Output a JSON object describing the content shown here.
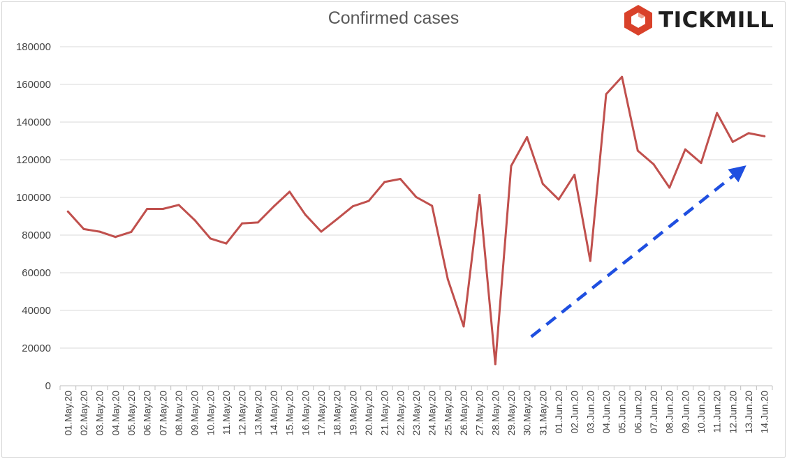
{
  "brand": {
    "name": "TICKMILL",
    "logo_color": "#d9412a"
  },
  "chart_data": {
    "type": "line",
    "title": "Confirmed cases",
    "xlabel": "",
    "ylabel": "",
    "ylim": [
      0,
      180000
    ],
    "yticks": [
      0,
      20000,
      40000,
      60000,
      80000,
      100000,
      120000,
      140000,
      160000,
      180000
    ],
    "grid": true,
    "line_color": "#c0504d",
    "categories": [
      "01.May.20",
      "02.May.20",
      "03.May.20",
      "04.May.20",
      "05.May.20",
      "06.May.20",
      "07.May.20",
      "08.May.20",
      "09.May.20",
      "10.May.20",
      "11.May.20",
      "12.May.20",
      "13.May.20",
      "14.May.20",
      "15.May.20",
      "16.May.20",
      "17.May.20",
      "18.May.20",
      "19.May.20",
      "20.May.20",
      "21.May.20",
      "22.May.20",
      "23.May.20",
      "24.May.20",
      "25.May.20",
      "26.May.20",
      "27.May.20",
      "28.May.20",
      "29.May.20",
      "30.May.20",
      "31.May.20",
      "01.Jun.20",
      "02.Jun.20",
      "03.Jun.20",
      "04.Jun.20",
      "05.Jun.20",
      "06.Jun.20",
      "07.Jun.20",
      "08.Jun.20",
      "09.Jun.20",
      "10.Jun.20",
      "11.Jun.20",
      "12.Jun.20",
      "13.Jun.20",
      "14.Jun.20"
    ],
    "values": [
      92500,
      83200,
      81800,
      79000,
      81700,
      93900,
      93900,
      96000,
      88000,
      78200,
      75500,
      86200,
      86700,
      95200,
      103000,
      90800,
      81800,
      88500,
      95300,
      98100,
      108200,
      109800,
      100200,
      95500,
      56500,
      31500,
      101300,
      11500,
      116700,
      132000,
      107200,
      98900,
      112000,
      66300,
      154800,
      164000,
      124800,
      117600,
      105200,
      125500,
      118300,
      144800,
      129500,
      134100,
      132500
    ],
    "annotation": {
      "type": "trend-arrow",
      "color": "#1f4fe0",
      "from": {
        "x": "30.May.20",
        "y": 26000
      },
      "to": {
        "x": "14.Jun.20",
        "y": 117000
      }
    }
  }
}
